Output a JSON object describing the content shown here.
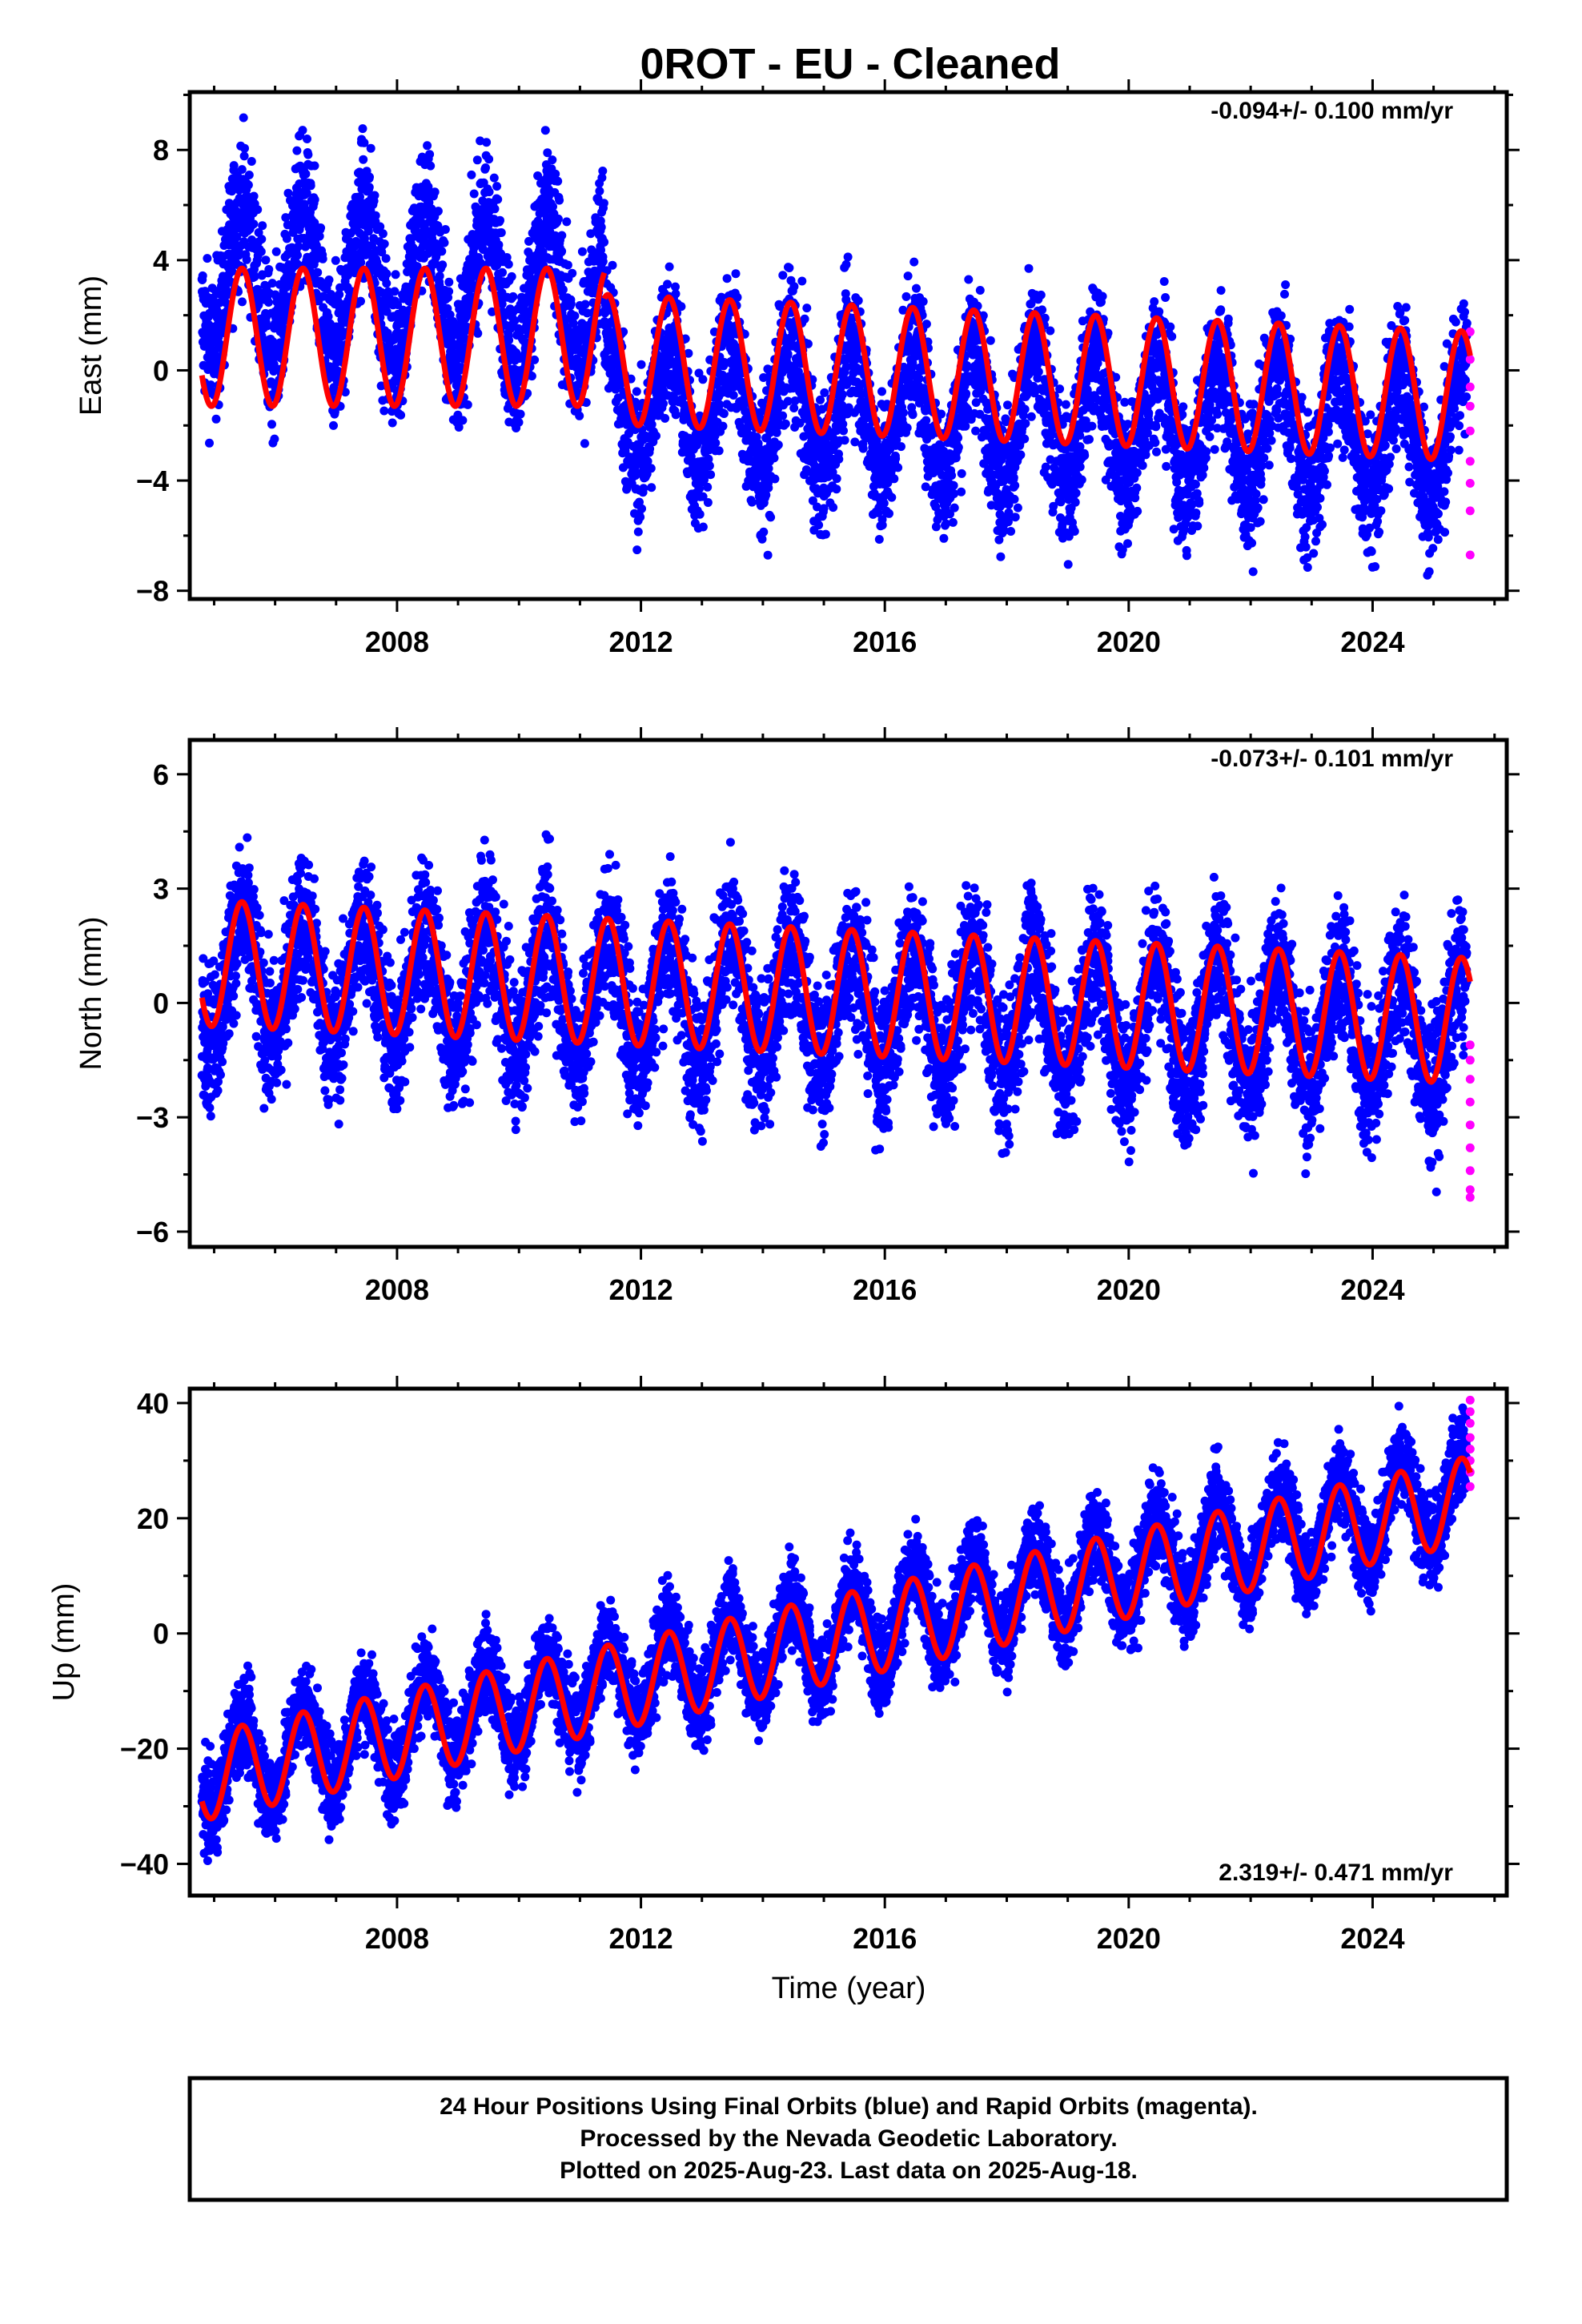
{
  "title": "0ROT  - EU - Cleaned",
  "xlabel": "Time (year)",
  "colors": {
    "final": "#0000ff",
    "rapid": "#ff00ff",
    "model": "#ff0000",
    "frame": "#000000"
  },
  "footer": [
    "24 Hour Positions Using Final Orbits (blue) and Rapid Orbits (magenta).",
    "Processed by the Nevada Geodetic Laboratory.",
    "Plotted on 2025-Aug-23. Last data on 2025-Aug-18."
  ],
  "chart_data": [
    {
      "type": "scatter",
      "ylabel": "East (mm)",
      "rate": "-0.094+/- 0.100 mm/yr",
      "xlim": [
        2004.6,
        2026.2
      ],
      "ylim": [
        -8.3,
        10.1
      ],
      "xticks": [
        2008,
        2012,
        2016,
        2020,
        2024
      ],
      "yticks": [
        -8,
        -4,
        0,
        4,
        8
      ],
      "series": [
        {
          "kind": "final-points",
          "segments": [
            {
              "x": [
                2004.8,
                2011.4
              ],
              "mean": 3.4,
              "amp": 2.6,
              "spread": 2.4
            },
            {
              "x": [
                2011.4,
                2025.55
              ],
              "mean": -1.0,
              "amp": 2.3,
              "spread": 2.3
            }
          ]
        },
        {
          "kind": "rapid-points",
          "x": 2025.6,
          "values": [
            1.4,
            0.4,
            -0.6,
            -1.3,
            -2.2,
            -3.3,
            -4.1,
            -5.1,
            -6.7
          ]
        },
        {
          "kind": "model",
          "segments": [
            {
              "x": [
                2004.8,
                2011.4
              ],
              "mean": 1.2,
              "amp": 2.5,
              "trend": 0
            },
            {
              "x": [
                2011.4,
                2025.6
              ],
              "mean": 0.4,
              "amp": 2.35,
              "trend": -0.094
            }
          ]
        }
      ]
    },
    {
      "type": "scatter",
      "ylabel": "North (mm)",
      "rate": "-0.073+/- 0.101 mm/yr",
      "xlim": [
        2004.6,
        2026.2
      ],
      "ylim": [
        -6.4,
        6.9
      ],
      "xticks": [
        2008,
        2012,
        2016,
        2020,
        2024
      ],
      "yticks": [
        -6,
        -3,
        0,
        3,
        6
      ],
      "series": [
        {
          "kind": "final-points",
          "segments": [
            {
              "x": [
                2004.8,
                2025.55
              ],
              "mean": 0.7,
              "amp": 1.6,
              "spread": 1.7
            }
          ]
        },
        {
          "kind": "rapid-points",
          "x": 2025.6,
          "values": [
            -1.1,
            -1.5,
            -2.0,
            -2.6,
            -3.2,
            -3.8,
            -4.4,
            -4.9,
            -5.1
          ]
        },
        {
          "kind": "model",
          "segments": [
            {
              "x": [
                2004.8,
                2025.6
              ],
              "mean": 1.05,
              "amp": 1.65,
              "trend": -0.073
            }
          ]
        }
      ]
    },
    {
      "type": "scatter",
      "ylabel": "Up (mm)",
      "rate": "2.319+/- 0.471 mm/yr",
      "xlim": [
        2004.6,
        2026.2
      ],
      "ylim": [
        -45.5,
        42.5
      ],
      "xticks": [
        2008,
        2012,
        2016,
        2020,
        2024
      ],
      "yticks": [
        -40,
        -20,
        0,
        20,
        40
      ],
      "series": [
        {
          "kind": "final-points",
          "segments": [
            {
              "x": [
                2004.8,
                2025.55
              ],
              "mean": -24.0,
              "amp": 7.5,
              "spread": 7.0
            }
          ]
        },
        {
          "kind": "rapid-points",
          "x": 2025.6,
          "values": [
            25.5,
            28.0,
            30.0,
            32.0,
            34.0,
            36.5,
            38.5,
            40.5
          ]
        },
        {
          "kind": "model",
          "segments": [
            {
              "x": [
                2004.8,
                2025.6
              ],
              "mean": -25.0,
              "amp": 7.5,
              "trend": 2.319
            }
          ]
        }
      ]
    }
  ]
}
